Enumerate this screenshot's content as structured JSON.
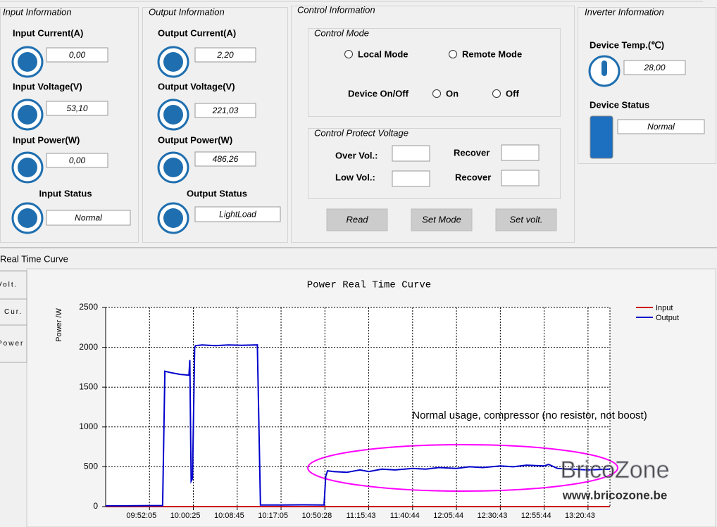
{
  "input": {
    "title": "Input Information",
    "fields": [
      {
        "label": "Input Current(A)",
        "value": "0,00"
      },
      {
        "label": "Input Voltage(V)",
        "value": "53,10"
      },
      {
        "label": "Input Power(W)",
        "value": "0,00"
      }
    ],
    "status_label": "Input Status",
    "status": "Normal"
  },
  "output": {
    "title": "Output Information",
    "fields": [
      {
        "label": "Output Current(A)",
        "value": "2,20"
      },
      {
        "label": "Output Voltage(V)",
        "value": "221,03"
      },
      {
        "label": "Output Power(W)",
        "value": "486,26"
      }
    ],
    "status_label": "Output Status",
    "status": "LightLoad"
  },
  "control": {
    "title": "Control Information",
    "mode_title": "Control Mode",
    "local": "Local Mode",
    "remote": "Remote Mode",
    "onoff": "Device On/Off",
    "on": "On",
    "off": "Off",
    "protect_title": "Control Protect Voltage",
    "over": "Over Vol.:",
    "low": "Low Vol.:",
    "recover": "Recover",
    "buttons": [
      "Read",
      "Set Mode",
      "Set volt."
    ]
  },
  "inverter": {
    "title": "Inverter Information",
    "temp_label": "Device Temp.(℃)",
    "temp": "28,00",
    "status_label": "Device Status",
    "status": "Normal"
  },
  "curve": {
    "title": "Real Time Curve",
    "tabs": [
      "Volt.",
      "Cur.",
      "Power"
    ]
  },
  "chart_data": {
    "type": "line",
    "title": "Power Real Time Curve",
    "y_label": "Power /W",
    "x": [
      0,
      5,
      10,
      13,
      13.5,
      15,
      17,
      19,
      19.2,
      19.5,
      19.8,
      20.3,
      20.5,
      22,
      25,
      28,
      31,
      34.6,
      35.3,
      40,
      45,
      49.8,
      50.2,
      50.6,
      52,
      55,
      58,
      60,
      63,
      66,
      70,
      73,
      76,
      80,
      83,
      86,
      90,
      93,
      96,
      100,
      101,
      103,
      106,
      110,
      115
    ],
    "series": [
      {
        "name": "Input",
        "color": "#cc0000",
        "values": [
          0,
          0,
          0,
          0,
          0,
          0,
          0,
          0,
          0,
          0,
          0,
          0,
          0,
          0,
          0,
          0,
          0,
          0,
          0,
          0,
          0,
          0,
          0,
          0,
          0,
          0,
          0,
          0,
          0,
          0,
          0,
          0,
          0,
          0,
          0,
          0,
          0,
          0,
          0,
          0,
          0,
          0,
          0,
          0,
          0
        ]
      },
      {
        "name": "Output",
        "color": "#0000cc",
        "values": [
          10,
          10,
          12,
          12,
          1700,
          1680,
          1660,
          1650,
          1840,
          320,
          350,
          2000,
          2020,
          2030,
          2020,
          2030,
          2025,
          2030,
          20,
          20,
          22,
          20,
          380,
          450,
          440,
          430,
          460,
          440,
          470,
          460,
          480,
          470,
          490,
          480,
          500,
          490,
          510,
          500,
          520,
          510,
          530,
          480,
          470,
          460,
          470
        ]
      }
    ],
    "xlim": [
      0,
      115
    ],
    "xticks": [
      {
        "value": 10,
        "label": "09:52:05"
      },
      {
        "value": 20,
        "label": "10:00:25"
      },
      {
        "value": 30,
        "label": "10:08:45"
      },
      {
        "value": 40,
        "label": "10:17:05"
      },
      {
        "value": 50,
        "label": "10:50:28"
      },
      {
        "value": 60,
        "label": "11:15:43"
      },
      {
        "value": 70,
        "label": "11:40:44"
      },
      {
        "value": 80,
        "label": "12:05:44"
      },
      {
        "value": 90,
        "label": "12:30:43"
      },
      {
        "value": 100,
        "label": "12:55:44"
      },
      {
        "value": 110,
        "label": "13:20:43"
      }
    ],
    "ylim": [
      0,
      2500
    ],
    "yticks": [
      0,
      500,
      1000,
      1500,
      2000,
      2500
    ],
    "grid": true,
    "annotation": "Normal usage, compressor (no resistor, not boost)",
    "watermark": "BricoZone",
    "watermark_url": "www.bricozone.be"
  }
}
